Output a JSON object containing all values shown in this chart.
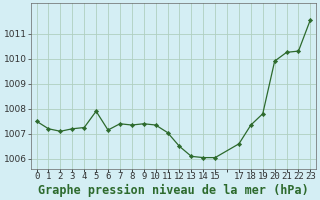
{
  "x": [
    0,
    1,
    2,
    3,
    4,
    5,
    6,
    7,
    8,
    9,
    10,
    11,
    12,
    13,
    14,
    15,
    17,
    18,
    19,
    20,
    21,
    22,
    23
  ],
  "y": [
    1007.5,
    1007.2,
    1007.1,
    1007.2,
    1007.25,
    1007.9,
    1007.15,
    1007.4,
    1007.35,
    1007.4,
    1007.35,
    1007.05,
    1006.5,
    1006.1,
    1006.05,
    1006.05,
    1006.6,
    1007.35,
    1007.8,
    1009.9,
    1010.25,
    1010.3,
    1011.55
  ],
  "line_color": "#2d6a2d",
  "marker_color": "#2d6a2d",
  "bg_color": "#d4eef4",
  "grid_color": "#b0cfc0",
  "xlabel": "Graphe pression niveau de la mer (hPa)",
  "xlim": [
    -0.5,
    23.5
  ],
  "ylim": [
    1005.6,
    1012.2
  ],
  "yticks": [
    1006,
    1007,
    1008,
    1009,
    1010,
    1011
  ],
  "ylabel_fontsize": 7.5,
  "xlabel_fontsize": 8.5,
  "tick_fontsize": 6.5,
  "xtick_labels": [
    "0",
    "1",
    "2",
    "3",
    "4",
    "5",
    "6",
    "7",
    "8",
    "9",
    "10",
    "11",
    "12",
    "13",
    "14",
    "15",
    "",
    "17",
    "18",
    "19",
    "20",
    "21",
    "22",
    "23"
  ],
  "xtick_positions": [
    0,
    1,
    2,
    3,
    4,
    5,
    6,
    7,
    8,
    9,
    10,
    11,
    12,
    13,
    14,
    15,
    16,
    17,
    18,
    19,
    20,
    21,
    22,
    23
  ]
}
